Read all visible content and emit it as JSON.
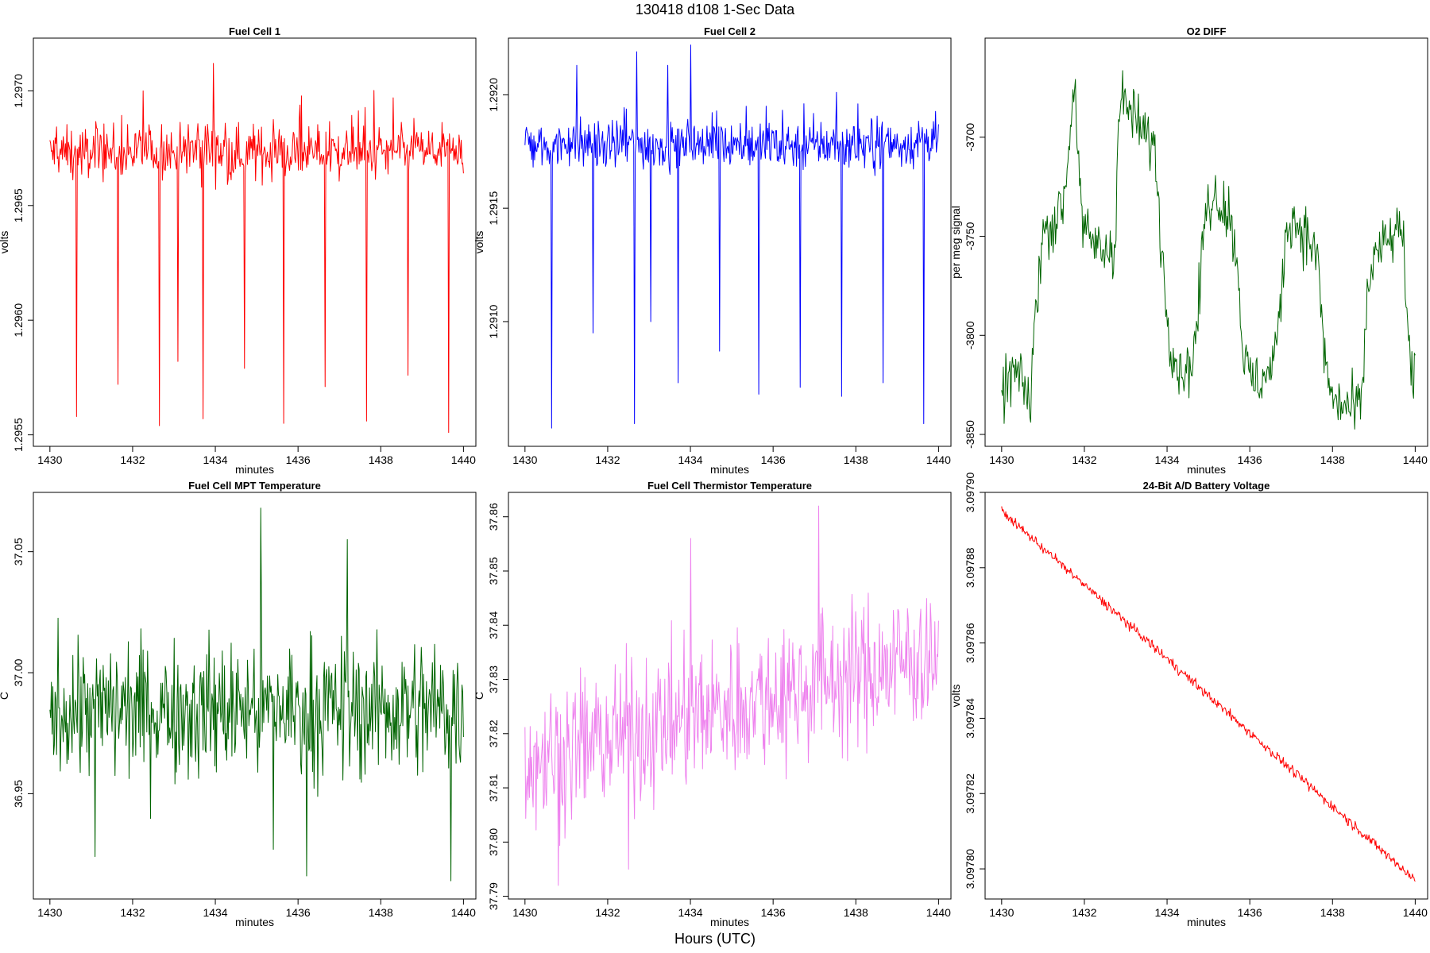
{
  "page": {
    "title": "130418   d108   1-Sec Data",
    "bottom_label": "Hours (UTC)"
  },
  "chart_data": [
    {
      "id": "fc1",
      "type": "line",
      "title": "Fuel Cell 1",
      "xlabel": "minutes",
      "ylabel": "volts",
      "color": "#ff0000",
      "xlim": [
        1429.6,
        1440.3
      ],
      "ylim": [
        1.29545,
        1.29723
      ],
      "x_ticks": [
        "1430",
        "1432",
        "1434",
        "1436",
        "1438",
        "1440"
      ],
      "y_ticks": [
        "1.2955",
        "1.2960",
        "1.2965",
        "1.2970"
      ],
      "baseline": 1.29673,
      "noise": 0.00012,
      "spikes": [
        {
          "x": 1430.65,
          "y": 1.29558
        },
        {
          "x": 1431.65,
          "y": 1.29572
        },
        {
          "x": 1432.65,
          "y": 1.29554
        },
        {
          "x": 1433.1,
          "y": 1.29582
        },
        {
          "x": 1433.7,
          "y": 1.29557
        },
        {
          "x": 1434.7,
          "y": 1.29579
        },
        {
          "x": 1435.65,
          "y": 1.29555
        },
        {
          "x": 1436.65,
          "y": 1.29571
        },
        {
          "x": 1437.65,
          "y": 1.29556
        },
        {
          "x": 1438.65,
          "y": 1.29576
        },
        {
          "x": 1439.65,
          "y": 1.29551
        }
      ],
      "peaks": [
        {
          "x": 1433.95,
          "y": 1.29712
        },
        {
          "x": 1432.25,
          "y": 1.297
        },
        {
          "x": 1438.3,
          "y": 1.29697
        }
      ]
    },
    {
      "id": "fc2",
      "type": "line",
      "title": "Fuel Cell 2",
      "xlabel": "minutes",
      "ylabel": "volts",
      "color": "#0000ff",
      "xlim": [
        1429.6,
        1440.3
      ],
      "ylim": [
        1.29045,
        1.29225
      ],
      "x_ticks": [
        "1430",
        "1432",
        "1434",
        "1436",
        "1438",
        "1440"
      ],
      "y_ticks": [
        "1.2910",
        "1.2915",
        "1.2920"
      ],
      "baseline": 1.29178,
      "noise": 0.00012,
      "spikes": [
        {
          "x": 1430.65,
          "y": 1.29053
        },
        {
          "x": 1431.65,
          "y": 1.29095
        },
        {
          "x": 1432.65,
          "y": 1.29055
        },
        {
          "x": 1433.05,
          "y": 1.291
        },
        {
          "x": 1433.7,
          "y": 1.29073
        },
        {
          "x": 1434.7,
          "y": 1.29087
        },
        {
          "x": 1435.65,
          "y": 1.29068
        },
        {
          "x": 1436.65,
          "y": 1.29071
        },
        {
          "x": 1437.65,
          "y": 1.29067
        },
        {
          "x": 1438.65,
          "y": 1.29073
        },
        {
          "x": 1439.65,
          "y": 1.29055
        }
      ],
      "peaks": [
        {
          "x": 1432.7,
          "y": 1.29219
        },
        {
          "x": 1433.45,
          "y": 1.29213
        },
        {
          "x": 1434.0,
          "y": 1.29222
        },
        {
          "x": 1431.25,
          "y": 1.29213
        }
      ]
    },
    {
      "id": "o2",
      "type": "line",
      "title": "O2 DIFF",
      "xlabel": "minutes",
      "ylabel": "per meg signal",
      "color": "#006400",
      "xlim": [
        1429.6,
        1440.3
      ],
      "ylim": [
        -3856,
        -3650
      ],
      "x_ticks": [
        "1430",
        "1432",
        "1434",
        "1436",
        "1438",
        "1440"
      ],
      "y_ticks": [
        "-3850",
        "-3800",
        "-3750",
        "-3700"
      ],
      "noise": 7,
      "profile": [
        [
          1430.0,
          -3830
        ],
        [
          1430.3,
          -3818
        ],
        [
          1430.6,
          -3828
        ],
        [
          1430.7,
          -3838
        ],
        [
          1430.8,
          -3790
        ],
        [
          1431.0,
          -3748
        ],
        [
          1431.3,
          -3742
        ],
        [
          1431.5,
          -3732
        ],
        [
          1431.65,
          -3700
        ],
        [
          1431.75,
          -3668
        ],
        [
          1431.85,
          -3705
        ],
        [
          1431.95,
          -3748
        ],
        [
          1432.5,
          -3758
        ],
        [
          1432.75,
          -3755
        ],
        [
          1432.8,
          -3700
        ],
        [
          1432.9,
          -3680
        ],
        [
          1433.2,
          -3690
        ],
        [
          1433.5,
          -3700
        ],
        [
          1433.7,
          -3705
        ],
        [
          1433.8,
          -3735
        ],
        [
          1433.95,
          -3778
        ],
        [
          1434.1,
          -3805
        ],
        [
          1434.3,
          -3818
        ],
        [
          1434.6,
          -3815
        ],
        [
          1434.75,
          -3790
        ],
        [
          1434.9,
          -3742
        ],
        [
          1435.1,
          -3728
        ],
        [
          1435.5,
          -3738
        ],
        [
          1435.7,
          -3762
        ],
        [
          1435.85,
          -3812
        ],
        [
          1436.1,
          -3825
        ],
        [
          1436.5,
          -3818
        ],
        [
          1436.7,
          -3798
        ],
        [
          1436.85,
          -3752
        ],
        [
          1437.0,
          -3740
        ],
        [
          1437.4,
          -3750
        ],
        [
          1437.65,
          -3762
        ],
        [
          1437.8,
          -3810
        ],
        [
          1438.0,
          -3833
        ],
        [
          1438.5,
          -3838
        ],
        [
          1438.7,
          -3835
        ],
        [
          1438.85,
          -3778
        ],
        [
          1439.0,
          -3760
        ],
        [
          1439.4,
          -3752
        ],
        [
          1439.7,
          -3745
        ],
        [
          1439.8,
          -3795
        ],
        [
          1439.9,
          -3822
        ]
      ]
    },
    {
      "id": "mpt",
      "type": "line",
      "title": "Fuel Cell MPT Temperature",
      "xlabel": "minutes",
      "ylabel": "C",
      "color": "#006400",
      "xlim": [
        1429.6,
        1440.3
      ],
      "ylim": [
        36.9065,
        37.0745
      ],
      "x_ticks": [
        "1430",
        "1432",
        "1434",
        "1436",
        "1438",
        "1440"
      ],
      "y_ticks": [
        "36.95",
        "37.00",
        "37.05"
      ],
      "mean_start": 36.985,
      "mean_end": 36.985,
      "amplitude": 0.026,
      "outliers": [
        {
          "x": 1435.1,
          "y": 37.068
        },
        {
          "x": 1437.2,
          "y": 37.055
        },
        {
          "x": 1436.2,
          "y": 36.916
        },
        {
          "x": 1439.7,
          "y": 36.914
        },
        {
          "x": 1435.4,
          "y": 36.927
        },
        {
          "x": 1431.1,
          "y": 36.924
        }
      ]
    },
    {
      "id": "therm",
      "type": "line",
      "title": "Fuel Cell Thermistor Temperature",
      "xlabel": "minutes",
      "ylabel": "C",
      "color": "#ee82ee",
      "xlim": [
        1429.6,
        1440.3
      ],
      "ylim": [
        37.7895,
        37.8645
      ],
      "x_ticks": [
        "1430",
        "1432",
        "1434",
        "1436",
        "1438",
        "1440"
      ],
      "y_ticks": [
        "37.79",
        "37.80",
        "37.81",
        "37.82",
        "37.83",
        "37.84",
        "37.85",
        "37.86"
      ],
      "mean_start": 37.815,
      "mean_end": 37.835,
      "amplitude": 0.012,
      "outliers": [
        {
          "x": 1437.1,
          "y": 37.862
        },
        {
          "x": 1430.8,
          "y": 37.792
        },
        {
          "x": 1432.5,
          "y": 37.795
        },
        {
          "x": 1434.0,
          "y": 37.856
        }
      ]
    },
    {
      "id": "batt",
      "type": "line",
      "title": "24-Bit A/D Battery Voltage",
      "xlabel": "minutes",
      "ylabel": "volts",
      "color": "#ff0000",
      "xlim": [
        1429.6,
        1440.3
      ],
      "ylim": [
        3.097792,
        3.0979
      ],
      "x_ticks": [
        "1430",
        "1432",
        "1434",
        "1436",
        "1438",
        "1440"
      ],
      "y_ticks": [
        "3.09780",
        "3.09782",
        "3.09784",
        "3.09786",
        "3.09788",
        "3.09790"
      ],
      "start": 3.097895,
      "end": 3.097797,
      "noise": 6e-07
    }
  ]
}
